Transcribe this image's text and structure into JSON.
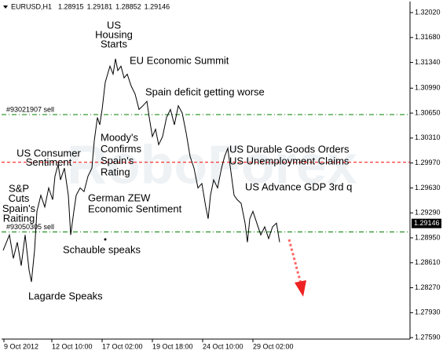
{
  "chart_data": {
    "type": "line",
    "title": "EURUSD,H1",
    "ohlc": [
      1.28915,
      1.29181,
      1.28852,
      1.29146
    ],
    "watermark": "RoboForex",
    "x": [
      2,
      10,
      15,
      20,
      25,
      30,
      35,
      38,
      42,
      45,
      50,
      55,
      60,
      65,
      68,
      72,
      75,
      80,
      85,
      88,
      92,
      95,
      100,
      105,
      110,
      115,
      118,
      122,
      125,
      128,
      132,
      135,
      138,
      142,
      145,
      148,
      152,
      156,
      160,
      165,
      170,
      175,
      180,
      185,
      188,
      192,
      196,
      200,
      205,
      210,
      215,
      220,
      225,
      230,
      235,
      240,
      245,
      250,
      255,
      260,
      263,
      266,
      270,
      275,
      280,
      284,
      288,
      292,
      296,
      300,
      305,
      310,
      313,
      316,
      320,
      325,
      330,
      335,
      340,
      345,
      350,
      354
    ],
    "series": [
      {
        "name": "EURUSD",
        "color": "#000000",
        "values": [
          1.2878,
          1.2899,
          1.2867,
          1.2889,
          1.2857,
          1.2899,
          1.2851,
          1.2835,
          1.2878,
          1.2931,
          1.2953,
          1.2937,
          1.2963,
          1.2947,
          1.2979,
          1.2995,
          1.2974,
          1.299,
          1.2953,
          1.2899,
          1.2931,
          1.2953,
          1.2963,
          1.2958,
          1.2979,
          1.299,
          1.3027,
          1.3059,
          1.3049,
          1.307,
          1.3107,
          1.3118,
          1.3129,
          1.3118,
          1.3139,
          1.3123,
          1.3129,
          1.3113,
          1.3118,
          1.3102,
          1.3091,
          1.307,
          1.3075,
          1.3081,
          1.3059,
          1.3033,
          1.3043,
          1.3022,
          1.3033,
          1.3059,
          1.307,
          1.3049,
          1.3075,
          1.3065,
          1.3038,
          1.3006,
          1.299,
          1.2963,
          1.2969,
          1.2937,
          1.2921,
          1.2953,
          1.2974,
          1.2963,
          1.299,
          1.3006,
          1.3017,
          1.2985,
          1.2953,
          1.2947,
          1.2942,
          1.2915,
          1.2889,
          1.2921,
          1.2931,
          1.2915,
          1.2899,
          1.291,
          1.2894,
          1.291,
          1.2915,
          1.2889
        ]
      }
    ],
    "xlim": [
      0,
      520
    ],
    "xticks": [
      {
        "value": 3,
        "label": "9 Oct 2012"
      },
      {
        "value": 64,
        "label": "12 Oct 10:00"
      },
      {
        "value": 128,
        "label": "17 Oct 02:00"
      },
      {
        "value": 192,
        "label": "19 Oct 18:00"
      },
      {
        "value": 256,
        "label": "24 Oct 10:00"
      },
      {
        "value": 320,
        "label": "29 Oct 02:00"
      }
    ],
    "ylim": [
      1.2757,
      1.3217
    ],
    "yticks": [
      {
        "value": 1.3202,
        "label": "1.32020"
      },
      {
        "value": 1.3168,
        "label": "1.31680"
      },
      {
        "value": 1.3134,
        "label": "1.31340"
      },
      {
        "value": 1.3099,
        "label": "1.30990"
      },
      {
        "value": 1.3065,
        "label": "1.30650"
      },
      {
        "value": 1.3031,
        "label": "1.30310"
      },
      {
        "value": 1.2997,
        "label": "1.29970"
      },
      {
        "value": 1.2963,
        "label": "1.29630"
      },
      {
        "value": 1.2929,
        "label": "1.29290"
      },
      {
        "value": 1.2895,
        "label": "1.28950"
      },
      {
        "value": 1.2861,
        "label": "1.28610"
      },
      {
        "value": 1.2827,
        "label": "1.28270"
      },
      {
        "value": 1.2793,
        "label": "1.27930"
      },
      {
        "value": 1.2759,
        "label": "1.27590"
      }
    ],
    "levels": [
      {
        "value": 1.3063,
        "color": "#008000",
        "style": "dashdot",
        "label": "#93021907 sell"
      },
      {
        "value": 1.2998,
        "color": "#ff0000",
        "style": "dash"
      },
      {
        "value": 1.2903,
        "color": "#008000",
        "style": "dashdot",
        "label": "#93050305 sell"
      }
    ],
    "annotations": [
      {
        "lines": [
          "US",
          "Housing",
          "Starts"
        ]
      },
      {
        "lines": [
          "EU Economic Summit"
        ]
      },
      {
        "lines": [
          "Spain deficit getting worse"
        ]
      },
      {
        "lines": [
          "Moody's",
          "Confirms",
          "Spain's",
          "Rating"
        ]
      },
      {
        "lines": [
          "US Consumer",
          "Sentiment"
        ]
      },
      {
        "lines": [
          "S&P",
          "Cuts",
          "Spain's",
          "Raiting"
        ]
      },
      {
        "lines": [
          "German ZEW",
          "Economic Sentiment"
        ]
      },
      {
        "lines": [
          "Schauble speaks"
        ]
      },
      {
        "lines": [
          "Lagarde Speaks"
        ]
      },
      {
        "lines": [
          "US Durable Goods Orders"
        ]
      },
      {
        "lines": [
          "US Unemployment Claims"
        ]
      },
      {
        "lines": [
          "US Advance GDP 3rd q"
        ]
      }
    ]
  }
}
